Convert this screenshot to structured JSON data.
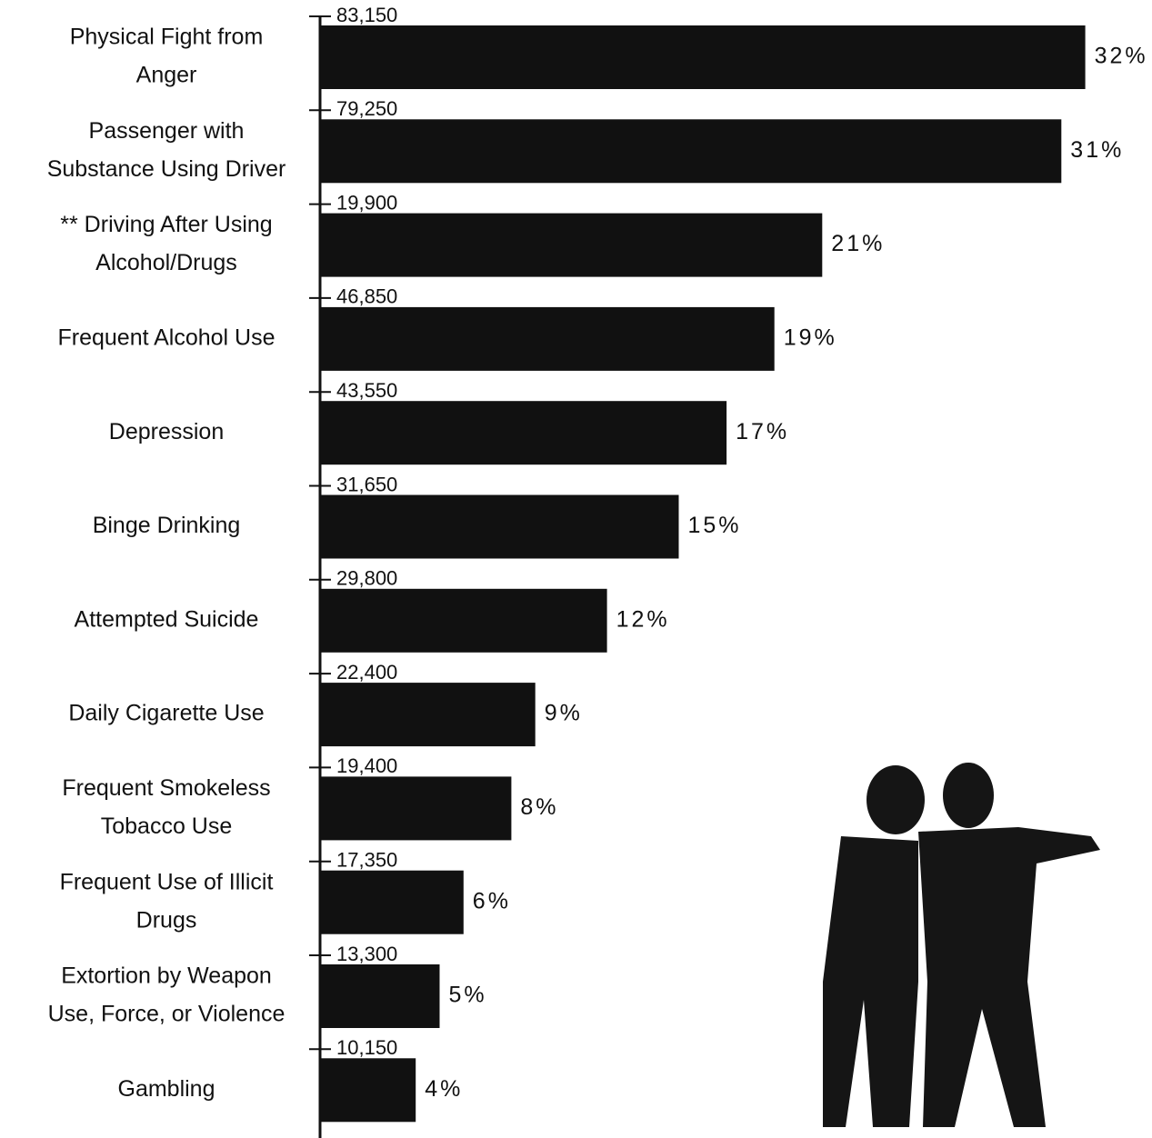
{
  "chart_data": {
    "type": "bar",
    "orientation": "horizontal",
    "categories": [
      [
        "Physical Fight from",
        "Anger"
      ],
      [
        "Passenger with",
        "Substance Using Driver"
      ],
      [
        "**  Driving After Using",
        "Alcohol/Drugs"
      ],
      [
        "Frequent Alcohol Use"
      ],
      [
        "Depression"
      ],
      [
        "Binge Drinking"
      ],
      [
        "Attempted Suicide"
      ],
      [
        "Daily Cigarette Use"
      ],
      [
        "Frequent Smokeless",
        "Tobacco Use"
      ],
      [
        "Frequent Use of Illicit",
        "Drugs"
      ],
      [
        "Extortion by Weapon",
        "Use, Force, or Violence"
      ],
      [
        "Gambling"
      ]
    ],
    "values": [
      32,
      31,
      21,
      19,
      17,
      15,
      12,
      9,
      8,
      6,
      5,
      4
    ],
    "value_labels": [
      "32%",
      "31%",
      "21%",
      "19%",
      "17%",
      "15%",
      "12%",
      "9%",
      "8%",
      "6%",
      "5%",
      "4%"
    ],
    "count_labels": [
      "83,150",
      "79,250",
      "19,900",
      "46,850",
      "43,550",
      "31,650",
      "29,800",
      "22,400",
      "19,400",
      "17,350",
      "13,300",
      "10,150"
    ],
    "color": "#111111"
  }
}
